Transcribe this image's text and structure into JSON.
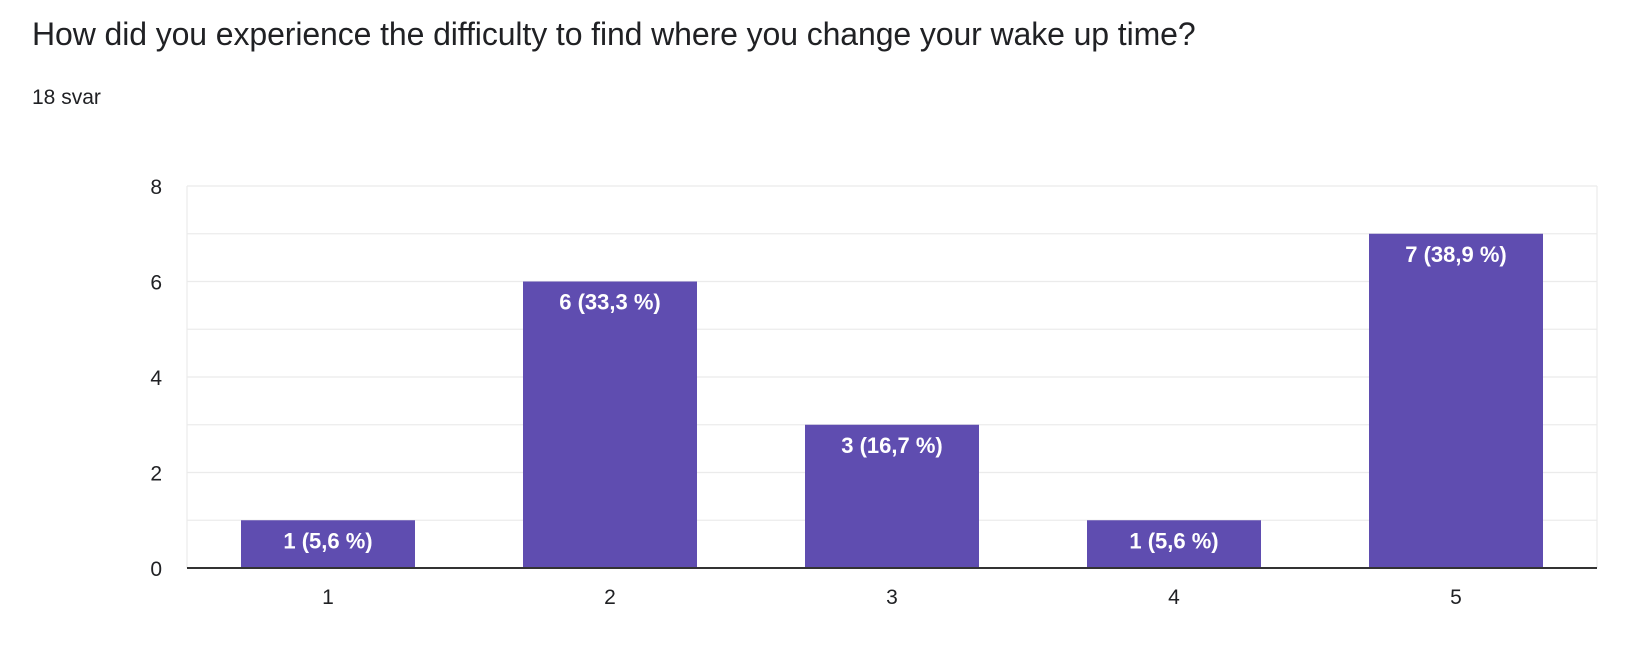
{
  "question": {
    "title": "How did you experience the difficulty to find where you change your wake up time?",
    "response_count": "18 svar"
  },
  "chart_data": {
    "type": "bar",
    "categories": [
      "1",
      "2",
      "3",
      "4",
      "5"
    ],
    "values": [
      1,
      6,
      3,
      1,
      7
    ],
    "data_labels": [
      "1 (5,6 %)",
      "6 (33,3 %)",
      "3 (16,7 %)",
      "1 (5,6 %)",
      "7 (38,9 %)"
    ],
    "y_ticks": [
      "0",
      "2",
      "4",
      "6",
      "8"
    ],
    "ylim": [
      0,
      8
    ],
    "grid": true,
    "legend": "none",
    "bar_color": "#5f4db0",
    "label_color": "#ffffff",
    "grid_color": "#ebebeb",
    "axis_color": "#333333",
    "tick_label_color": "#202124"
  }
}
